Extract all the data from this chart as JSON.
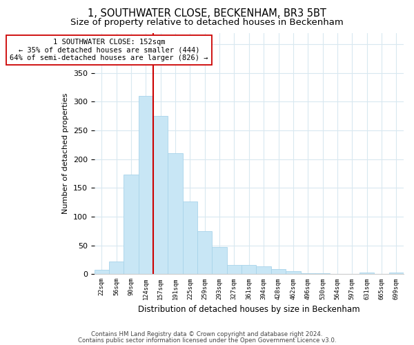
{
  "title": "1, SOUTHWATER CLOSE, BECKENHAM, BR3 5BT",
  "subtitle": "Size of property relative to detached houses in Beckenham",
  "xlabel": "Distribution of detached houses by size in Beckenham",
  "ylabel": "Number of detached properties",
  "bar_labels": [
    "22sqm",
    "56sqm",
    "90sqm",
    "124sqm",
    "157sqm",
    "191sqm",
    "225sqm",
    "259sqm",
    "293sqm",
    "327sqm",
    "361sqm",
    "394sqm",
    "428sqm",
    "462sqm",
    "496sqm",
    "530sqm",
    "564sqm",
    "597sqm",
    "631sqm",
    "665sqm",
    "699sqm"
  ],
  "bar_heights": [
    8,
    22,
    173,
    310,
    275,
    210,
    127,
    75,
    47,
    16,
    16,
    14,
    9,
    5,
    2,
    2,
    0,
    0,
    3,
    0,
    3
  ],
  "bar_color": "#c8e6f5",
  "bar_edge_color": "#a8d4ea",
  "vline_color": "#cc0000",
  "annotation_title": "1 SOUTHWATER CLOSE: 152sqm",
  "annotation_line1": "← 35% of detached houses are smaller (444)",
  "annotation_line2": "64% of semi-detached houses are larger (826) →",
  "annotation_box_color": "#ffffff",
  "annotation_box_edge": "#cc0000",
  "ylim": [
    0,
    420
  ],
  "footnote1": "Contains HM Land Registry data © Crown copyright and database right 2024.",
  "footnote2": "Contains public sector information licensed under the Open Government Licence v3.0.",
  "background_color": "#ffffff",
  "title_fontsize": 10.5,
  "subtitle_fontsize": 9.5,
  "grid_color": "#d8e8f0"
}
